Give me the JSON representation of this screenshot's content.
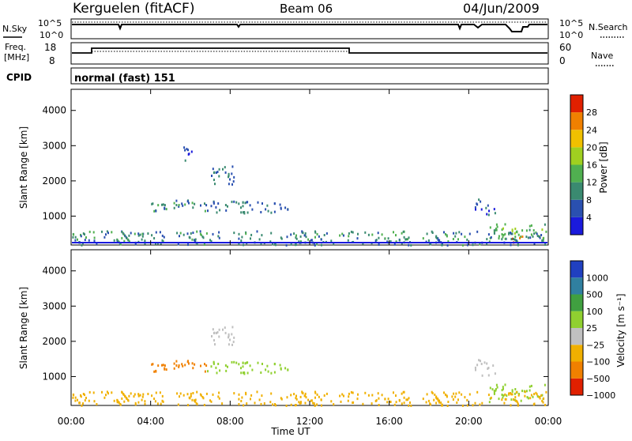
{
  "header": {
    "station": "Kerguelen (fitACF)",
    "beam": "Beam 06",
    "date": "04/Jun/2009"
  },
  "panels": {
    "nsky": {
      "label": "N.Sky",
      "right_label": "N.Search",
      "ticks_left": [
        "10^5",
        "10^0"
      ],
      "ticks_right": [
        "10^5",
        "10^0"
      ]
    },
    "freq": {
      "label_line1": "Freq.",
      "label_line2": "[MHz]",
      "right_label": "Nave",
      "ticks_left": [
        "18",
        "8"
      ],
      "ticks_right": [
        "60",
        "0"
      ]
    },
    "cpid": {
      "label": "CPID",
      "value": "normal (fast) 151"
    }
  },
  "chart_data": [
    {
      "type": "heatmap",
      "quantity": "Power",
      "ylabel": "Slant Range [km]",
      "yticks": [
        "1000",
        "2000",
        "3000",
        "4000"
      ],
      "ylim": [
        180,
        4600
      ],
      "xlim_hours": [
        0,
        24
      ],
      "colorbar": {
        "label": "Power [dB]",
        "ticks": [
          "4",
          "8",
          "12",
          "16",
          "20",
          "24",
          "28"
        ],
        "range": [
          0,
          32
        ]
      },
      "regions": [
        {
          "t0": 4.0,
          "t1": 6.8,
          "r0": 1150,
          "r1": 1500,
          "value": 10
        },
        {
          "t0": 6.8,
          "t1": 10.9,
          "r0": 1100,
          "r1": 1450,
          "value": 8
        },
        {
          "t0": 7.0,
          "t1": 8.2,
          "r0": 1900,
          "r1": 2500,
          "value": 8
        },
        {
          "t0": 5.5,
          "t1": 6.1,
          "r0": 2600,
          "r1": 3000,
          "value": 6
        },
        {
          "t0": 20.3,
          "t1": 21.3,
          "r0": 1050,
          "r1": 1500,
          "value": 6
        },
        {
          "t0": 21.0,
          "t1": 23.8,
          "r0": 300,
          "r1": 800,
          "value": 14
        },
        {
          "t0": 22.0,
          "t1": 22.7,
          "r0": 250,
          "r1": 450,
          "value": 28
        },
        {
          "t0": 0.0,
          "t1": 24.0,
          "r0": 200,
          "r1": 600,
          "value": 10
        }
      ]
    },
    {
      "type": "heatmap",
      "quantity": "Velocity",
      "ylabel": "Slant Range [km]",
      "yticks": [
        "1000",
        "2000",
        "3000",
        "4000"
      ],
      "ylim": [
        180,
        4600
      ],
      "xlim_hours": [
        0,
        24
      ],
      "xticks": [
        "00:00",
        "04:00",
        "08:00",
        "12:00",
        "16:00",
        "20:00",
        "00:00"
      ],
      "xlabel": "Time UT",
      "colorbar": {
        "label": "Velocity [m s⁻¹]",
        "ticks": [
          "1000",
          "500",
          "100",
          "25",
          "−25",
          "−100",
          "−500",
          "−1000"
        ]
      },
      "regions": [
        {
          "t0": 4.0,
          "t1": 6.8,
          "r0": 1150,
          "r1": 1500,
          "value": -150
        },
        {
          "t0": 6.8,
          "t1": 10.9,
          "r0": 1100,
          "r1": 1450,
          "value": 40
        },
        {
          "t0": 7.0,
          "t1": 8.2,
          "r0": 1900,
          "r1": 2500,
          "value": 0
        },
        {
          "t0": 20.3,
          "t1": 21.3,
          "r0": 1050,
          "r1": 1500,
          "value": 0
        },
        {
          "t0": 21.0,
          "t1": 23.8,
          "r0": 300,
          "r1": 800,
          "value": 80
        },
        {
          "t0": 0.0,
          "t1": 24.0,
          "r0": 200,
          "r1": 600,
          "value": -80
        }
      ]
    }
  ],
  "colors": {
    "power_scale": [
      "#1a1adc",
      "#2a50b0",
      "#3a8a70",
      "#50b050",
      "#a0d020",
      "#f0c000",
      "#f08000",
      "#e02000"
    ],
    "velocity_scale": [
      "#2040c0",
      "#3080a0",
      "#40a040",
      "#90d030",
      "#c0c0c0",
      "#f0b000",
      "#f08000",
      "#e02000"
    ]
  }
}
